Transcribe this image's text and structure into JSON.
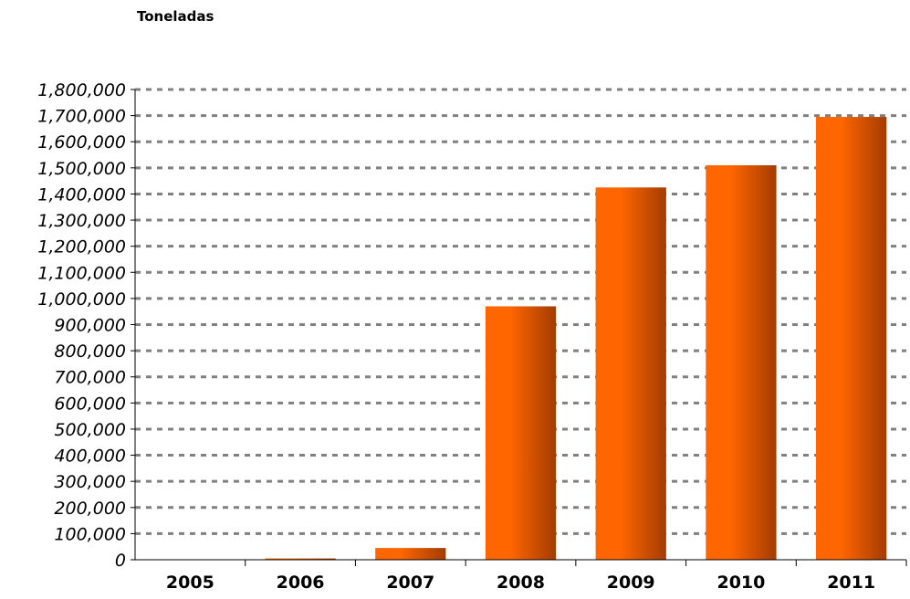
{
  "chart_data": {
    "type": "bar",
    "title": "Toneladas",
    "xlabel": "",
    "ylabel": "",
    "categories": [
      "2005",
      "2006",
      "2007",
      "2008",
      "2009",
      "2010",
      "2011"
    ],
    "values": [
      0,
      5000,
      45000,
      970000,
      1425000,
      1510000,
      1695000
    ],
    "ylim": [
      0,
      1800000
    ],
    "yticks": [
      "0",
      "100,000",
      "200,000",
      "300,000",
      "400,000",
      "500,000",
      "600,000",
      "700,000",
      "800,000",
      "900,000",
      "1,000,000",
      "1,100,000",
      "1,200,000",
      "1,300,000",
      "1,400,000",
      "1,500,000",
      "1,600,000",
      "1,700,000",
      "1,800,000"
    ],
    "grid": true,
    "legend": "none",
    "colors": {
      "bar_light": "#ff6600",
      "bar_dark": "#a33c00",
      "grid": "#808080",
      "axis": "#000000"
    }
  }
}
